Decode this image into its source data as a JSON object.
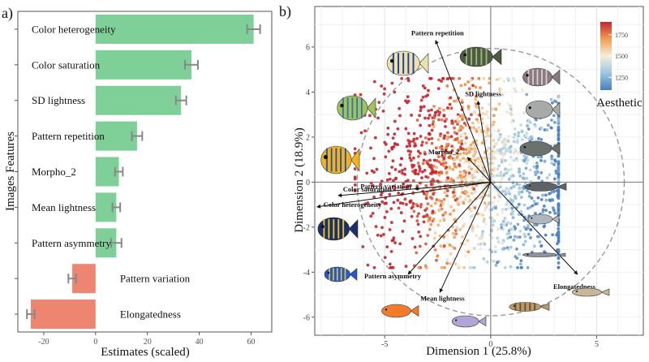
{
  "chart_data": [
    {
      "type": "bar",
      "panel_label": "a)",
      "xlabel": "Estimates (scaled)",
      "ylabel": "Images Features",
      "xlim": [
        -30,
        68
      ],
      "xticks": [
        -20,
        0,
        20,
        40,
        60
      ],
      "categories": [
        "Color heterogeneity",
        "Color saturation",
        "SD lightness",
        "Pattern repetition",
        "Morpho_2",
        "Mean lightness",
        "Pattern asymmetry",
        "Pattern variation",
        "Elongatedness"
      ],
      "values": [
        61,
        37,
        33,
        16,
        9,
        8,
        8,
        -9,
        -25
      ],
      "errors": [
        2.5,
        2.5,
        2,
        2,
        1.5,
        1.5,
        2,
        1.5,
        1.5
      ],
      "colors": {
        "positive": "#7ecf98",
        "negative": "#ee8570",
        "errorbar": "#888888"
      }
    },
    {
      "type": "scatter",
      "panel_label": "b)",
      "xlabel": "Dimension 1 (25.8%)",
      "ylabel": "Dimension 2 (18.9%)",
      "xlim": [
        -8.3,
        7.2
      ],
      "ylim": [
        -6.8,
        7.8
      ],
      "xticks": [
        -5,
        0,
        5
      ],
      "yticks": [
        -6,
        -4,
        -2,
        0,
        2,
        4,
        6
      ],
      "grid": true,
      "legend": {
        "title": "Aesthetic",
        "ticks": [
          1250,
          1500,
          1750
        ],
        "range": [
          1100,
          1900
        ],
        "placement": "top-right"
      },
      "points_summary": "approximately 2000 image points colored by aesthetic score",
      "loadings": [
        {
          "name": "Pattern repetition",
          "x": -2.6,
          "y": 6.3
        },
        {
          "name": "SD lightness",
          "x": -0.6,
          "y": 3.6
        },
        {
          "name": "Morpho_2",
          "x": -1.1,
          "y": 1.1
        },
        {
          "name": "Pattern variation",
          "x": -3.6,
          "y": -0.3
        },
        {
          "name": "Color saturation",
          "x": -7.2,
          "y": -0.6
        },
        {
          "name": "Color heterogeneity",
          "x": -8.2,
          "y": -1.1
        },
        {
          "name": "Pattern asymmetry",
          "x": -3.9,
          "y": -4.1
        },
        {
          "name": "Mean lightness",
          "x": -2.4,
          "y": -4.9
        },
        {
          "name": "Elongatedness",
          "x": 4.1,
          "y": -4.1
        }
      ],
      "fish_images": [
        "emperor angelfish",
        "pufferfish",
        "grouper",
        "wrasse",
        "bream",
        "angelfish",
        "grunt",
        "sea bass",
        "needlefish",
        "catfish",
        "pipefish",
        "damselfish",
        "blue tang",
        "anthias",
        "goby",
        "blenny",
        "flathead"
      ]
    }
  ]
}
